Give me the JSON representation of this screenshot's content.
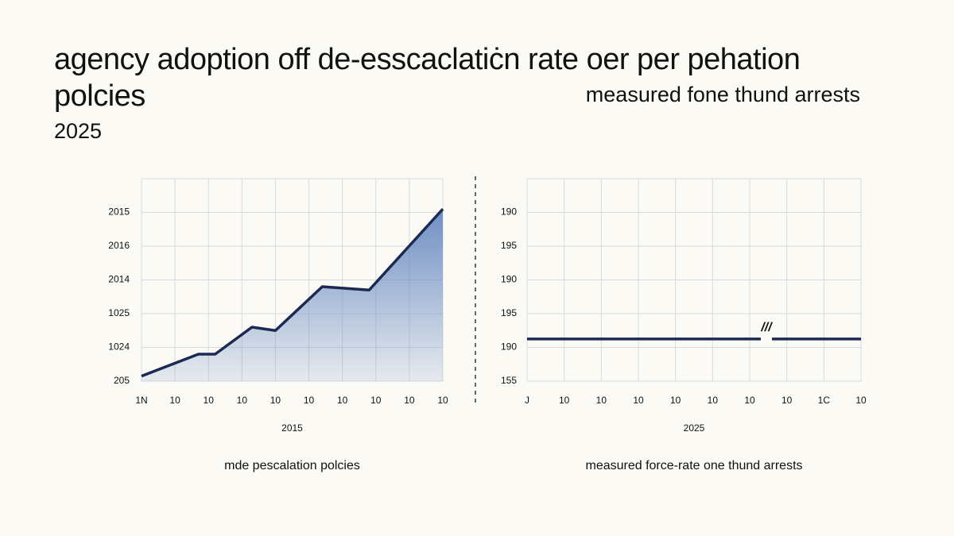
{
  "header": {
    "title": "agency adoption off de-esscaclatiċn rate oer per pehation polcies",
    "subtitle": "measured fone thund arrests",
    "year": "2025"
  },
  "chart_data": [
    {
      "type": "line",
      "xlabel": "2015",
      "caption": "mde pescalation polcies",
      "x": [
        0,
        1.7,
        2.2,
        3.3,
        4,
        5.4,
        6.8,
        9
      ],
      "series": [
        {
          "color": "#1b2a52",
          "values": [
            0.15,
            0.8,
            0.8,
            1.6,
            1.5,
            2.8,
            2.7,
            5.1
          ]
        }
      ],
      "area": true,
      "area_color": "#6f8fc4",
      "xlim": [
        0,
        9
      ],
      "xticks": [
        {
          "value": 0,
          "label": "1N"
        },
        {
          "value": 1,
          "label": "10"
        },
        {
          "value": 2,
          "label": "10"
        },
        {
          "value": 3,
          "label": "10"
        },
        {
          "value": 4,
          "label": "10"
        },
        {
          "value": 5,
          "label": "10"
        },
        {
          "value": 6,
          "label": "10"
        },
        {
          "value": 7,
          "label": "10"
        },
        {
          "value": 8,
          "label": "10"
        },
        {
          "value": 9,
          "label": "10"
        }
      ],
      "ylim": [
        0,
        6
      ],
      "yticks": [
        {
          "value": 0,
          "label": "205"
        },
        {
          "value": 1,
          "label": "1024"
        },
        {
          "value": 2,
          "label": "1025"
        },
        {
          "value": 3,
          "label": "2014"
        },
        {
          "value": 4,
          "label": "2016"
        },
        {
          "value": 5,
          "label": "2015"
        }
      ],
      "grid": true
    },
    {
      "type": "line",
      "xlabel": "2025",
      "caption": "measured force-rate one thund arrests",
      "annotation": "///",
      "x": [
        0,
        6.3,
        6.45,
        6.6,
        9
      ],
      "series": [
        {
          "color": "#1b2a52",
          "values": [
            1.25,
            1.25,
            null,
            1.25,
            1.25
          ]
        }
      ],
      "area": false,
      "xlim": [
        0,
        9
      ],
      "xticks": [
        {
          "value": 0,
          "label": "J"
        },
        {
          "value": 1,
          "label": "10"
        },
        {
          "value": 2,
          "label": "10"
        },
        {
          "value": 3,
          "label": "10"
        },
        {
          "value": 4,
          "label": "10"
        },
        {
          "value": 5,
          "label": "10"
        },
        {
          "value": 6,
          "label": "10"
        },
        {
          "value": 7,
          "label": "10"
        },
        {
          "value": 8,
          "label": "1C"
        },
        {
          "value": 9,
          "label": "10"
        }
      ],
      "ylim": [
        0,
        6
      ],
      "yticks": [
        {
          "value": 0,
          "label": "155"
        },
        {
          "value": 1,
          "label": "190"
        },
        {
          "value": 2,
          "label": "195"
        },
        {
          "value": 3,
          "label": "190"
        },
        {
          "value": 4,
          "label": "195"
        },
        {
          "value": 5,
          "label": "190"
        }
      ],
      "grid": true
    }
  ]
}
